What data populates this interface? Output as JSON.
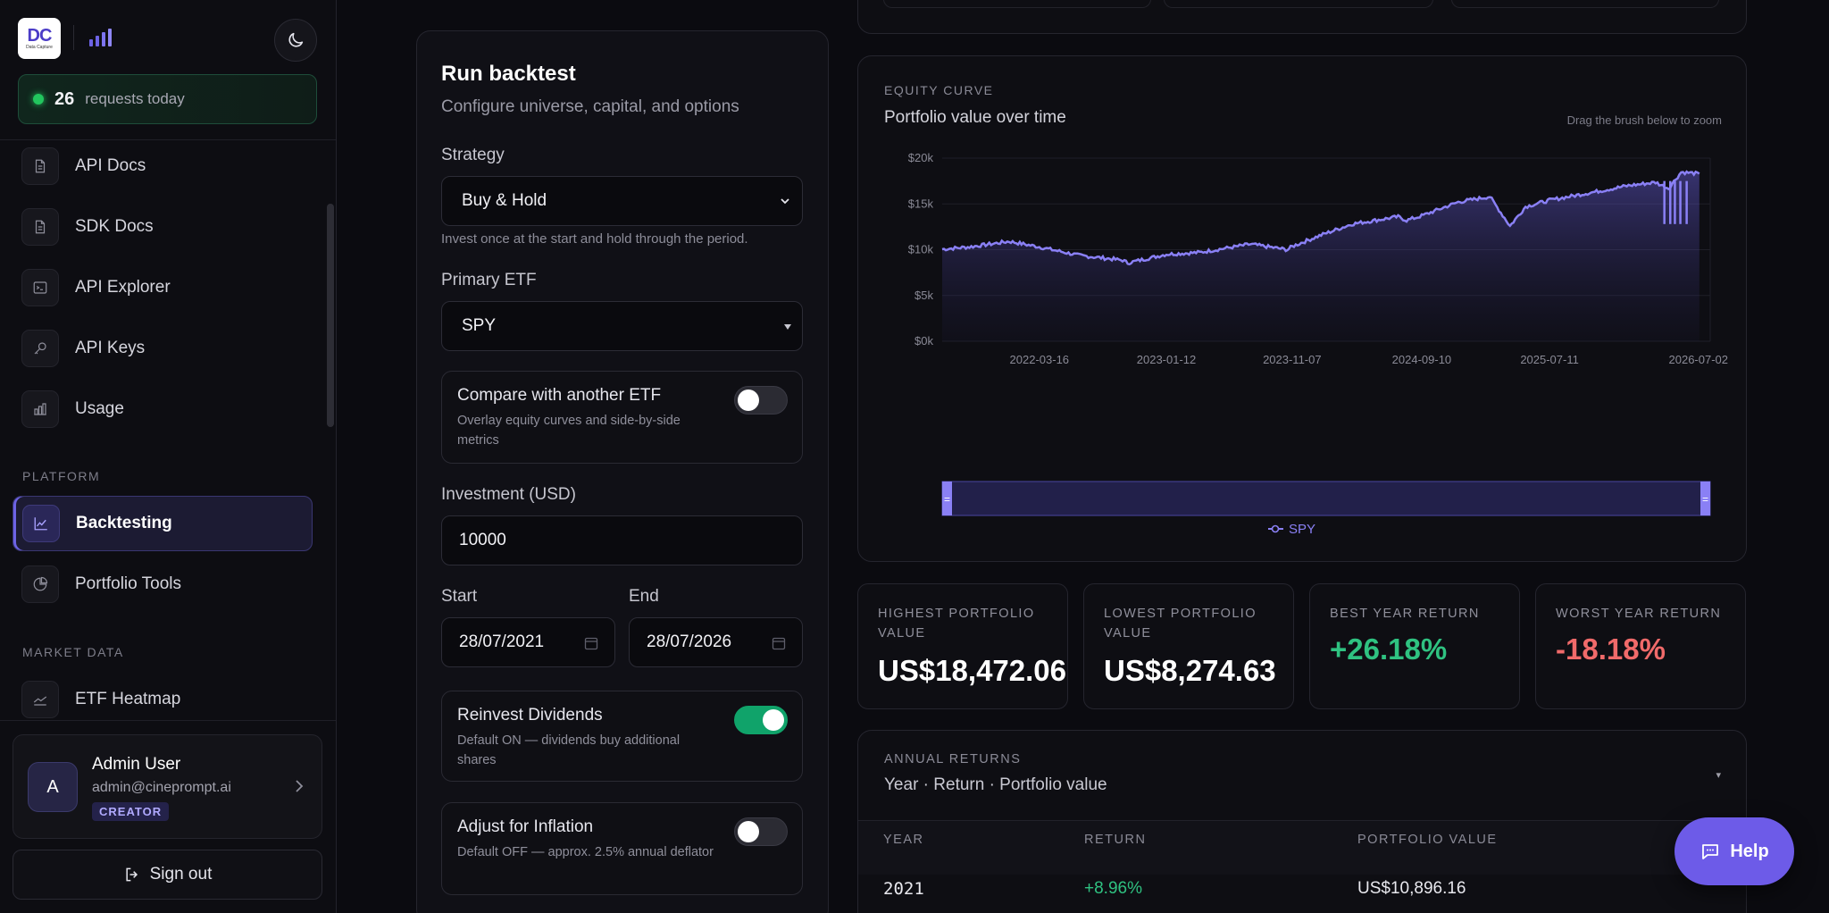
{
  "sidebar": {
    "logo_text": "DC",
    "logo_sub": "Data Capture",
    "requests_count": "26",
    "requests_label": "requests today",
    "items_top": [
      {
        "label": "API Docs",
        "icon": "document-icon"
      },
      {
        "label": "SDK Docs",
        "icon": "document-icon"
      },
      {
        "label": "API Explorer",
        "icon": "terminal-icon"
      },
      {
        "label": "API Keys",
        "icon": "key-icon"
      },
      {
        "label": "Usage",
        "icon": "bar-chart-icon"
      }
    ],
    "platform_label": "PLATFORM",
    "platform_items": [
      {
        "label": "Backtesting",
        "icon": "line-chart-icon",
        "active": true
      },
      {
        "label": "Portfolio Tools",
        "icon": "pie-chart-icon"
      }
    ],
    "market_label": "MARKET DATA",
    "market_items": [
      {
        "label": "ETF Heatmap",
        "icon": "trend-icon"
      }
    ],
    "user": {
      "initial": "A",
      "name": "Admin User",
      "email": "admin@cineprompt.ai",
      "badge": "CREATOR"
    },
    "signout_label": "Sign out"
  },
  "form": {
    "title": "Run backtest",
    "subtitle": "Configure universe, capital, and options",
    "strategy_label": "Strategy",
    "strategy_value": "Buy & Hold",
    "strategy_help": "Invest once at the start and hold through the period.",
    "etf_label": "Primary ETF",
    "etf_value": "SPY",
    "compare": {
      "title": "Compare with another ETF",
      "desc": "Overlay equity curves and side-by-side metrics",
      "on": false
    },
    "investment_label": "Investment (USD)",
    "investment_value": "10000",
    "start_label": "Start",
    "start_value": "28/07/2021",
    "end_label": "End",
    "end_value": "28/07/2026",
    "reinvest": {
      "title": "Reinvest Dividends",
      "desc": "Default ON — dividends buy additional shares",
      "on": true
    },
    "inflation": {
      "title": "Adjust for Inflation",
      "desc": "Default OFF — approx. 2.5% annual deflator",
      "on": false
    }
  },
  "chart": {
    "section_label": "EQUITY CURVE",
    "title": "Portfolio value over time",
    "hint": "Drag the brush below to zoom",
    "accent": "#8a80f5"
  },
  "chart_data": {
    "type": "area",
    "series": [
      {
        "name": "SPY"
      }
    ],
    "y_ticks": [
      "$0k",
      "$5k",
      "$10k",
      "$15k",
      "$20k"
    ],
    "ylim": [
      0,
      20000
    ],
    "x_ticks": [
      "2022-03-16",
      "2023-01-12",
      "2023-11-07",
      "2024-09-10",
      "2025-07-11",
      "2026-07-02"
    ],
    "x": [
      "2021-07-28",
      "2021-10-01",
      "2022-01-03",
      "2022-03-16",
      "2022-06-15",
      "2022-09-30",
      "2022-10-12",
      "2023-01-12",
      "2023-04-01",
      "2023-07-31",
      "2023-10-27",
      "2023-11-07",
      "2024-01-15",
      "2024-03-28",
      "2024-07-16",
      "2024-08-05",
      "2024-09-10",
      "2024-12-06",
      "2025-02-19",
      "2025-04-08",
      "2025-05-15",
      "2025-07-11",
      "2025-10-01",
      "2026-01-15",
      "2026-03-20",
      "2026-04-20",
      "2026-05-20",
      "2026-07-02"
    ],
    "values": [
      10050,
      10300,
      10900,
      10300,
      9400,
      8850,
      8550,
      9500,
      9700,
      10600,
      10000,
      10350,
      11600,
      12800,
      13600,
      13200,
      13700,
      15200,
      15800,
      12600,
      14700,
      15400,
      16100,
      17000,
      17350,
      16700,
      18472,
      18300
    ],
    "min_value": 8274.63,
    "max_value": 18472.06
  },
  "stats": [
    {
      "label": "HIGHEST PORTFOLIO VALUE",
      "value": "US$18,472.06",
      "tone": "neutral"
    },
    {
      "label": "LOWEST PORTFOLIO VALUE",
      "value": "US$8,274.63",
      "tone": "neutral"
    },
    {
      "label": "BEST YEAR RETURN",
      "value": "+26.18%",
      "tone": "pos"
    },
    {
      "label": "WORST YEAR RETURN",
      "value": "-18.18%",
      "tone": "neg"
    }
  ],
  "annual": {
    "label": "ANNUAL RETURNS",
    "subtitle": "Year · Return · Portfolio value",
    "columns": [
      "YEAR",
      "RETURN",
      "PORTFOLIO VALUE"
    ],
    "rows": [
      {
        "year": "2021",
        "return": "+8.96%",
        "value": "US$10,896.16"
      }
    ]
  },
  "help_label": "Help"
}
